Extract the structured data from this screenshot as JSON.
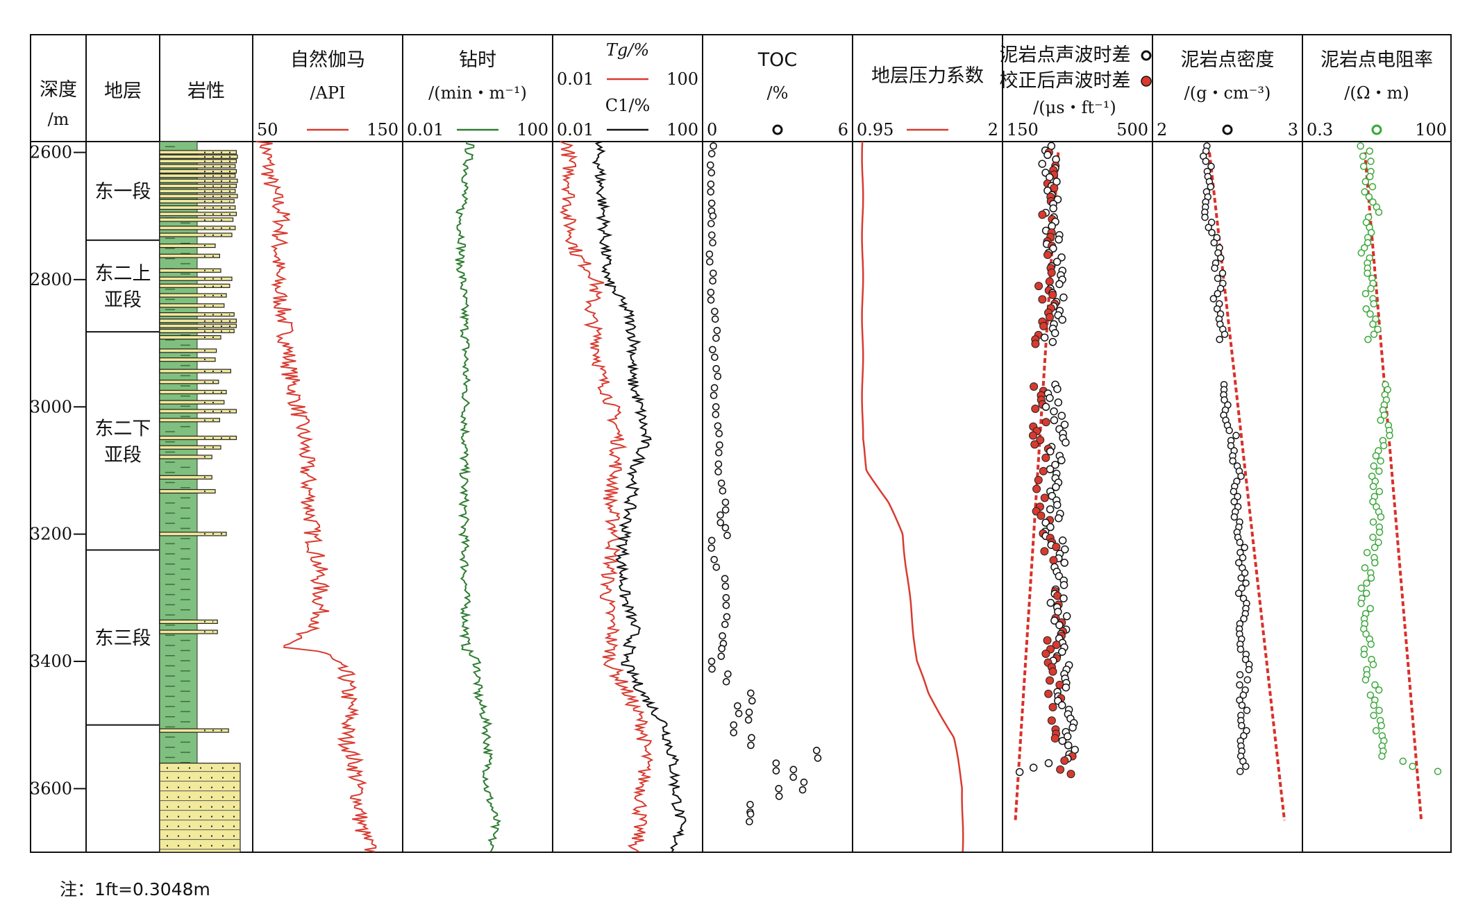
{
  "chart_data": {
    "type": "well_log",
    "note": "注：1ft=0.3048m",
    "depth": {
      "title": "深度",
      "unit": "/m",
      "range": [
        2583,
        3700
      ],
      "ticks": [
        2600,
        2800,
        3000,
        3200,
        3400,
        3600
      ]
    },
    "formation": {
      "title": "地层",
      "units": [
        {
          "name": [
            "东一段"
          ],
          "top": 2583,
          "bottom": 2738
        },
        {
          "name": [
            "东二上",
            "亚段"
          ],
          "top": 2738,
          "bottom": 2882
        },
        {
          "name": [
            "东二下",
            "亚段"
          ],
          "top": 2882,
          "bottom": 3225
        },
        {
          "name": [
            "东三段"
          ],
          "top": 3225,
          "bottom": 3500
        }
      ]
    },
    "lithology": {
      "title": "岩性",
      "mudstone_color": "#7fbf7f",
      "sand_color": "#f1e99b",
      "sand_beds": [
        [
          2597,
          2601,
          0.88
        ],
        [
          2604,
          2608,
          0.9
        ],
        [
          2611,
          2615,
          0.88
        ],
        [
          2619,
          2623,
          0.86
        ],
        [
          2627,
          2631,
          0.88
        ],
        [
          2634,
          2638,
          0.86
        ],
        [
          2642,
          2646,
          0.9
        ],
        [
          2650,
          2654,
          0.88
        ],
        [
          2658,
          2662,
          0.86
        ],
        [
          2666,
          2670,
          0.9
        ],
        [
          2674,
          2678,
          0.84
        ],
        [
          2684,
          2688,
          0.86
        ],
        [
          2694,
          2698,
          0.88
        ],
        [
          2703,
          2708,
          0.82
        ],
        [
          2716,
          2720,
          0.86
        ],
        [
          2727,
          2731,
          0.8
        ],
        [
          2744,
          2747,
          0.5
        ],
        [
          2760,
          2764,
          0.58
        ],
        [
          2783,
          2786,
          0.6
        ],
        [
          2796,
          2799,
          0.8
        ],
        [
          2807,
          2812,
          0.76
        ],
        [
          2822,
          2826,
          0.7
        ],
        [
          2838,
          2842,
          0.66
        ],
        [
          2852,
          2856,
          0.84
        ],
        [
          2862,
          2866,
          0.88
        ],
        [
          2870,
          2874,
          0.88
        ],
        [
          2878,
          2882,
          0.84
        ],
        [
          2888,
          2891,
          0.6
        ],
        [
          2909,
          2912,
          0.52
        ],
        [
          2923,
          2926,
          0.5
        ],
        [
          2941,
          2945,
          0.78
        ],
        [
          2958,
          2962,
          0.56
        ],
        [
          2974,
          2978,
          0.7
        ],
        [
          2990,
          2994,
          0.66
        ],
        [
          3004,
          3008,
          0.88
        ],
        [
          3018,
          3022,
          0.58
        ],
        [
          3046,
          3050,
          0.88
        ],
        [
          3061,
          3064,
          0.6
        ],
        [
          3076,
          3079,
          0.44
        ],
        [
          3108,
          3111,
          0.44
        ],
        [
          3130,
          3133,
          0.5
        ],
        [
          3197,
          3200,
          0.7
        ],
        [
          3335,
          3338,
          0.54
        ],
        [
          3351,
          3354,
          0.54
        ],
        [
          3506,
          3509,
          0.74
        ]
      ],
      "sand_base": [
        3560,
        3700
      ]
    },
    "tracks": [
      {
        "title": [
          "自然伽马",
          "/API"
        ],
        "min": "50",
        "max": "150",
        "series": "GR",
        "color": "#d93a2f"
      },
      {
        "title": [
          "钻时",
          "/(min・m⁻¹)"
        ],
        "min": "0.01",
        "max": "100",
        "series": "ROP",
        "color": "#2e7d32"
      },
      {
        "title_tg": "Tg/%",
        "tg_min": "0.01",
        "tg_max": "100",
        "title_c1": "C1/%",
        "c1_min": "0.01",
        "c1_max": "100",
        "series": [
          "Tg",
          "C1"
        ],
        "colors": [
          "#d93a2f",
          "#111111"
        ]
      },
      {
        "title": [
          "TOC",
          "/%"
        ],
        "min": "0",
        "max": "6",
        "series": "TOC",
        "color": "#111111"
      },
      {
        "title": [
          "地层压力系数"
        ],
        "min": "0.95",
        "max": "2",
        "series": "Pressure",
        "color": "#d93a2f"
      },
      {
        "title": [
          "泥岩点声波时差",
          "校正后声波时差",
          "/(μs・ft⁻¹)"
        ],
        "min": "150",
        "max": "500",
        "series": [
          "AC",
          "AC_corr"
        ],
        "colors": [
          "#111111",
          "#d93a2f"
        ]
      },
      {
        "title": [
          "泥岩点密度",
          "/(g・cm⁻³)"
        ],
        "min": "2",
        "max": "3",
        "series": "DEN",
        "color": "#111111"
      },
      {
        "title": [
          "泥岩点电阻率",
          "/(Ω・m)"
        ],
        "min": "0.3",
        "max": "100",
        "series": "RES",
        "color": "#3aa63a"
      }
    ],
    "series": {
      "GR": [
        [
          2583,
          58
        ],
        [
          2650,
          62
        ],
        [
          2700,
          70
        ],
        [
          2750,
          67
        ],
        [
          2800,
          66
        ],
        [
          2850,
          70
        ],
        [
          2900,
          73
        ],
        [
          2950,
          75
        ],
        [
          3000,
          80
        ],
        [
          3050,
          84
        ],
        [
          3100,
          86
        ],
        [
          3150,
          88
        ],
        [
          3200,
          90
        ],
        [
          3250,
          94
        ],
        [
          3300,
          95
        ],
        [
          3340,
          95
        ],
        [
          3360,
          78
        ],
        [
          3378,
          72
        ],
        [
          3385,
          97
        ],
        [
          3420,
          112
        ],
        [
          3480,
          115
        ],
        [
          3520,
          112
        ],
        [
          3560,
          118
        ],
        [
          3620,
          121
        ],
        [
          3660,
          122
        ],
        [
          3700,
          129
        ]
      ],
      "ROP": [
        [
          2583,
          0.45
        ],
        [
          2650,
          0.42
        ],
        [
          2700,
          0.38
        ],
        [
          2740,
          0.4
        ],
        [
          2770,
          0.38
        ],
        [
          2800,
          0.4
        ],
        [
          2900,
          0.42
        ],
        [
          3000,
          0.42
        ],
        [
          3100,
          0.41
        ],
        [
          3200,
          0.41
        ],
        [
          3300,
          0.42
        ],
        [
          3380,
          0.42
        ],
        [
          3400,
          0.5
        ],
        [
          3450,
          0.5
        ],
        [
          3500,
          0.56
        ],
        [
          3550,
          0.57
        ],
        [
          3600,
          0.56
        ],
        [
          3650,
          0.62
        ],
        [
          3700,
          0.58
        ]
      ],
      "Tg": [
        [
          2583,
          0.1
        ],
        [
          2650,
          0.12
        ],
        [
          2700,
          0.1
        ],
        [
          2760,
          0.16
        ],
        [
          2800,
          0.3
        ],
        [
          2850,
          0.25
        ],
        [
          2900,
          0.3
        ],
        [
          2950,
          0.32
        ],
        [
          3000,
          0.4
        ],
        [
          3050,
          0.44
        ],
        [
          3100,
          0.42
        ],
        [
          3150,
          0.38
        ],
        [
          3200,
          0.42
        ],
        [
          3250,
          0.38
        ],
        [
          3300,
          0.36
        ],
        [
          3350,
          0.4
        ],
        [
          3400,
          0.38
        ],
        [
          3450,
          0.5
        ],
        [
          3500,
          0.6
        ],
        [
          3550,
          0.62
        ],
        [
          3600,
          0.6
        ],
        [
          3650,
          0.58
        ],
        [
          3700,
          0.55
        ]
      ],
      "C1": [
        [
          2583,
          0.3
        ],
        [
          2650,
          0.32
        ],
        [
          2700,
          0.34
        ],
        [
          2750,
          0.35
        ],
        [
          2800,
          0.36
        ],
        [
          2850,
          0.5
        ],
        [
          2900,
          0.55
        ],
        [
          2950,
          0.52
        ],
        [
          3000,
          0.58
        ],
        [
          3050,
          0.62
        ],
        [
          3100,
          0.55
        ],
        [
          3150,
          0.52
        ],
        [
          3200,
          0.48
        ],
        [
          3250,
          0.46
        ],
        [
          3300,
          0.48
        ],
        [
          3350,
          0.55
        ],
        [
          3400,
          0.48
        ],
        [
          3450,
          0.6
        ],
        [
          3500,
          0.75
        ],
        [
          3550,
          0.8
        ],
        [
          3600,
          0.82
        ],
        [
          3650,
          0.85
        ],
        [
          3700,
          0.82
        ]
      ],
      "TOC": [
        [
          2590,
          0.2
        ],
        [
          2620,
          0.1
        ],
        [
          2650,
          0.15
        ],
        [
          2680,
          0.1
        ],
        [
          2700,
          0.15
        ],
        [
          2730,
          0.2
        ],
        [
          2760,
          0.1
        ],
        [
          2790,
          0.2
        ],
        [
          2820,
          0.15
        ],
        [
          2850,
          0.3
        ],
        [
          2880,
          0.35
        ],
        [
          2910,
          0.25
        ],
        [
          2940,
          0.4
        ],
        [
          2970,
          0.3
        ],
        [
          3000,
          0.3
        ],
        [
          3030,
          0.45
        ],
        [
          3060,
          0.5
        ],
        [
          3090,
          0.4
        ],
        [
          3120,
          0.6
        ],
        [
          3150,
          0.75
        ],
        [
          3170,
          0.5
        ],
        [
          3190,
          0.8
        ],
        [
          3210,
          0.1
        ],
        [
          3240,
          0.3
        ],
        [
          3270,
          0.7
        ],
        [
          3300,
          0.8
        ],
        [
          3330,
          0.75
        ],
        [
          3360,
          0.6
        ],
        [
          3380,
          0.55
        ],
        [
          3400,
          0.2
        ],
        [
          3420,
          0.8
        ],
        [
          3450,
          1.9
        ],
        [
          3470,
          1.3
        ],
        [
          3480,
          1.8
        ],
        [
          3500,
          1.1
        ],
        [
          3520,
          1.9
        ],
        [
          3540,
          4.7
        ],
        [
          3560,
          2.9
        ],
        [
          3570,
          3.7
        ],
        [
          3590,
          4.1
        ],
        [
          3600,
          3.1
        ],
        [
          3625,
          1.8
        ],
        [
          3640,
          1.8
        ]
      ],
      "Pressure": [
        [
          2583,
          1.02
        ],
        [
          2900,
          1.02
        ],
        [
          3050,
          1.02
        ],
        [
          3100,
          1.05
        ],
        [
          3150,
          1.2
        ],
        [
          3200,
          1.3
        ],
        [
          3300,
          1.35
        ],
        [
          3400,
          1.4
        ],
        [
          3450,
          1.48
        ],
        [
          3520,
          1.66
        ],
        [
          3600,
          1.72
        ],
        [
          3700,
          1.72
        ]
      ],
      "AC": [
        [
          2590,
          260
        ],
        [
          2620,
          255
        ],
        [
          2650,
          270
        ],
        [
          2700,
          260
        ],
        [
          2750,
          270
        ],
        [
          2800,
          280
        ],
        [
          2850,
          275
        ],
        [
          2900,
          265
        ],
        [
          2950,
          270
        ],
        [
          3000,
          270
        ],
        [
          3050,
          280
        ],
        [
          3100,
          275
        ],
        [
          3150,
          265
        ],
        [
          3200,
          270
        ],
        [
          3250,
          285
        ],
        [
          3300,
          280
        ],
        [
          3350,
          285
        ],
        [
          3400,
          285
        ],
        [
          3450,
          290
        ],
        [
          3500,
          300
        ],
        [
          3550,
          305
        ],
        [
          3580,
          180
        ]
      ],
      "AC_corr": [
        [
          2600,
          255
        ],
        [
          2650,
          260
        ],
        [
          2700,
          255
        ],
        [
          2760,
          260
        ],
        [
          2800,
          245
        ],
        [
          2850,
          265
        ],
        [
          2900,
          240
        ],
        [
          3000,
          230
        ],
        [
          3050,
          240
        ],
        [
          3100,
          250
        ],
        [
          3150,
          240
        ],
        [
          3200,
          255
        ],
        [
          3250,
          275
        ],
        [
          3300,
          270
        ],
        [
          3350,
          275
        ],
        [
          3400,
          265
        ],
        [
          3450,
          270
        ],
        [
          3500,
          285
        ],
        [
          3550,
          300
        ]
      ],
      "DEN": [
        [
          2590,
          2.35
        ],
        [
          2620,
          2.38
        ],
        [
          2650,
          2.37
        ],
        [
          2700,
          2.36
        ],
        [
          2750,
          2.42
        ],
        [
          2800,
          2.45
        ],
        [
          2850,
          2.42
        ],
        [
          2900,
          2.48
        ],
        [
          2950,
          2.5
        ],
        [
          3000,
          2.48
        ],
        [
          3050,
          2.55
        ],
        [
          3100,
          2.56
        ],
        [
          3150,
          2.57
        ],
        [
          3200,
          2.58
        ],
        [
          3250,
          2.6
        ],
        [
          3300,
          2.6
        ],
        [
          3350,
          2.6
        ],
        [
          3400,
          2.62
        ],
        [
          3450,
          2.6
        ],
        [
          3500,
          2.62
        ],
        [
          3550,
          2.6
        ],
        [
          3580,
          2.6
        ]
      ],
      "RES": [
        [
          2590,
          0.42
        ],
        [
          2650,
          0.45
        ],
        [
          2700,
          0.48
        ],
        [
          2750,
          0.42
        ],
        [
          2800,
          0.44
        ],
        [
          2850,
          0.46
        ],
        [
          2900,
          0.48
        ],
        [
          2950,
          0.52
        ],
        [
          3000,
          0.56
        ],
        [
          3050,
          0.55
        ],
        [
          3100,
          0.5
        ],
        [
          3150,
          0.5
        ],
        [
          3200,
          0.48
        ],
        [
          3250,
          0.45
        ],
        [
          3300,
          0.42
        ],
        [
          3350,
          0.45
        ],
        [
          3400,
          0.44
        ],
        [
          3450,
          0.48
        ],
        [
          3500,
          0.52
        ],
        [
          3550,
          0.54
        ],
        [
          3580,
          1.0
        ]
      ]
    },
    "trends": {
      "AC": [
        [
          2600,
          280
        ],
        [
          3650,
          180
        ]
      ],
      "DEN": [
        [
          2600,
          2.38
        ],
        [
          3650,
          2.88
        ]
      ],
      "RES": [
        [
          2600,
          0.42
        ],
        [
          3650,
          0.8
        ]
      ]
    }
  }
}
